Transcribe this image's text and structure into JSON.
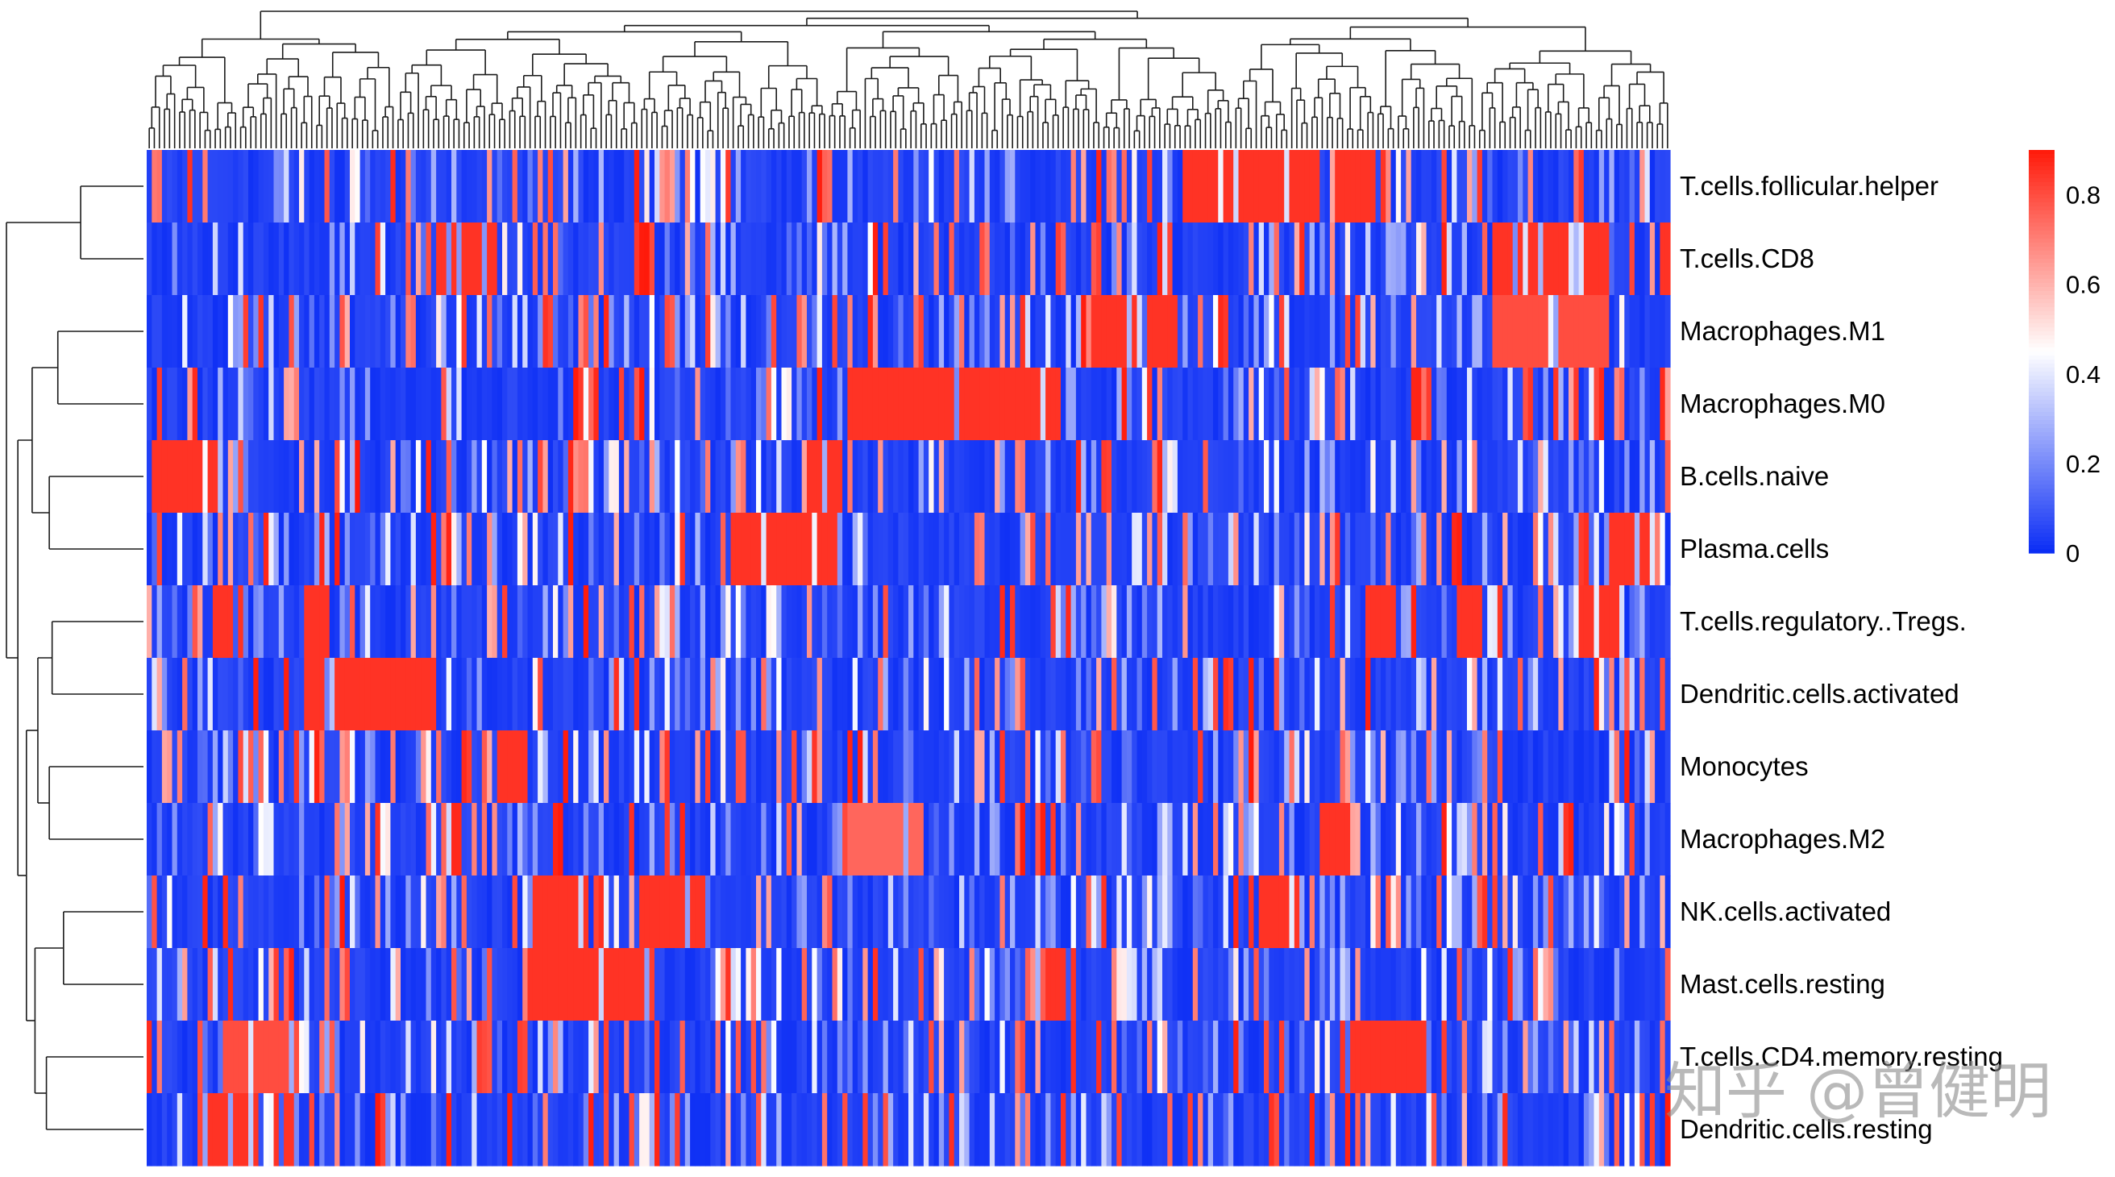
{
  "chart_data": {
    "type": "heatmap",
    "rows": [
      "T.cells.follicular.helper",
      "T.cells.CD8",
      "Macrophages.M1",
      "Macrophages.M0",
      "B.cells.naive",
      "Plasma.cells",
      "T.cells.regulatory..Tregs.",
      "Dendritic.cells.activated",
      "Monocytes",
      "Macrophages.M2",
      "NK.cells.activated",
      "Mast.cells.resting",
      "T.cells.CD4.memory.resting",
      "Dendritic.cells.resting"
    ],
    "n_samples": 300,
    "colorbar": {
      "ticks": [
        0,
        0.2,
        0.4,
        0.6,
        0.8
      ],
      "range": [
        0,
        0.9
      ],
      "colors": {
        "low": "#0a2cf5",
        "mid": "#ffffff",
        "high": "#ff1a0a"
      }
    },
    "row_dendrogram": true,
    "column_dendrogram": true,
    "high_value_blocks": [
      {
        "row": "T.cells.follicular.helper",
        "from": 0.68,
        "to": 0.74,
        "value": 0.85
      },
      {
        "row": "T.cells.follicular.helper",
        "from": 0.73,
        "to": 0.77,
        "value": 0.85
      },
      {
        "row": "T.cells.follicular.helper",
        "from": 0.78,
        "to": 0.81,
        "value": 0.85
      },
      {
        "row": "T.cells.CD8",
        "from": 0.19,
        "to": 0.23,
        "value": 0.85
      },
      {
        "row": "T.cells.CD8",
        "from": 0.885,
        "to": 0.96,
        "value": 0.85
      },
      {
        "row": "T.cells.CD8",
        "from": 0.995,
        "to": 1.0,
        "value": 0.85
      },
      {
        "row": "Macrophages.M1",
        "from": 0.62,
        "to": 0.675,
        "value": 0.85
      },
      {
        "row": "Macrophages.M1",
        "from": 0.885,
        "to": 0.96,
        "value": 0.8
      },
      {
        "row": "Macrophages.M0",
        "from": 0.46,
        "to": 0.6,
        "value": 0.85
      },
      {
        "row": "B.cells.naive",
        "from": 0.005,
        "to": 0.05,
        "value": 0.85
      },
      {
        "row": "B.cells.naive",
        "from": 0.435,
        "to": 0.455,
        "value": 0.85
      },
      {
        "row": "Plasma.cells",
        "from": 0.385,
        "to": 0.455,
        "value": 0.85
      },
      {
        "row": "Plasma.cells",
        "from": 0.96,
        "to": 0.985,
        "value": 0.85
      },
      {
        "row": "T.cells.regulatory..Tregs.",
        "from": 0.045,
        "to": 0.065,
        "value": 0.85
      },
      {
        "row": "T.cells.regulatory..Tregs.",
        "from": 0.105,
        "to": 0.12,
        "value": 0.85
      },
      {
        "row": "T.cells.regulatory..Tregs.",
        "from": 0.8,
        "to": 0.82,
        "value": 0.85
      },
      {
        "row": "T.cells.regulatory..Tregs.",
        "from": 0.86,
        "to": 0.875,
        "value": 0.85
      },
      {
        "row": "T.cells.regulatory..Tregs.",
        "from": 0.935,
        "to": 0.965,
        "value": 0.85
      },
      {
        "row": "Dendritic.cells.activated",
        "from": 0.105,
        "to": 0.19,
        "value": 0.85
      },
      {
        "row": "Monocytes",
        "from": 0.23,
        "to": 0.25,
        "value": 0.85
      },
      {
        "row": "Macrophages.M2",
        "from": 0.46,
        "to": 0.51,
        "value": 0.75
      },
      {
        "row": "Macrophages.M2",
        "from": 0.77,
        "to": 0.79,
        "value": 0.85
      },
      {
        "row": "NK.cells.activated",
        "from": 0.255,
        "to": 0.29,
        "value": 0.85
      },
      {
        "row": "NK.cells.activated",
        "from": 0.325,
        "to": 0.37,
        "value": 0.85
      },
      {
        "row": "NK.cells.activated",
        "from": 0.73,
        "to": 0.755,
        "value": 0.85
      },
      {
        "row": "Mast.cells.resting",
        "from": 0.25,
        "to": 0.33,
        "value": 0.85
      },
      {
        "row": "Mast.cells.resting",
        "from": 0.59,
        "to": 0.61,
        "value": 0.85
      },
      {
        "row": "T.cells.CD4.memory.resting",
        "from": 0.05,
        "to": 0.1,
        "value": 0.8
      },
      {
        "row": "T.cells.CD4.memory.resting",
        "from": 0.78,
        "to": 0.84,
        "value": 0.85
      },
      {
        "row": "Dendritic.cells.resting",
        "from": 0.04,
        "to": 0.1,
        "value": 0.85
      }
    ]
  },
  "watermark": "知乎 @曾健明"
}
